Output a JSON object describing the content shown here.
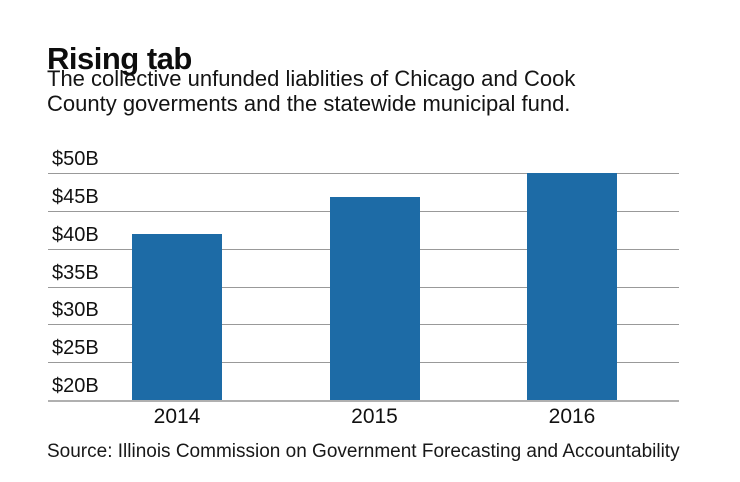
{
  "header": {
    "title": "Rising tab",
    "subtitle": "The collective unfunded liablities of Chicago and Cook County goverments and the statewide municipal fund.",
    "subtitle_lines": [
      "The collective unfunded liablities of Chicago and Cook",
      "County goverments and the statewide municipal fund."
    ]
  },
  "chart_data": {
    "type": "bar",
    "title": "Rising tab",
    "subtitle": "The collective unfunded liablities of Chicago and Cook County goverments and the statewide municipal fund.",
    "categories": [
      "2014",
      "2015",
      "2016"
    ],
    "values": [
      42,
      46.8,
      50
    ],
    "value_unit": "$B",
    "xlabel": "",
    "ylabel": "",
    "ylim": [
      20,
      50
    ],
    "yticks": [
      {
        "value": 50,
        "label": "$50B"
      },
      {
        "value": 45,
        "label": "$45B"
      },
      {
        "value": 40,
        "label": "$40B"
      },
      {
        "value": 35,
        "label": "$35B"
      },
      {
        "value": 30,
        "label": "$30B"
      },
      {
        "value": 25,
        "label": "$25B"
      },
      {
        "value": 20,
        "label": "$20B"
      }
    ],
    "grid": "horizontal",
    "legend": "none",
    "bar_color": "#1d6ba6",
    "gridline_color": "#999999"
  },
  "footer": {
    "source": "Source: Illinois Commission on Government Forecasting and Accountability"
  }
}
